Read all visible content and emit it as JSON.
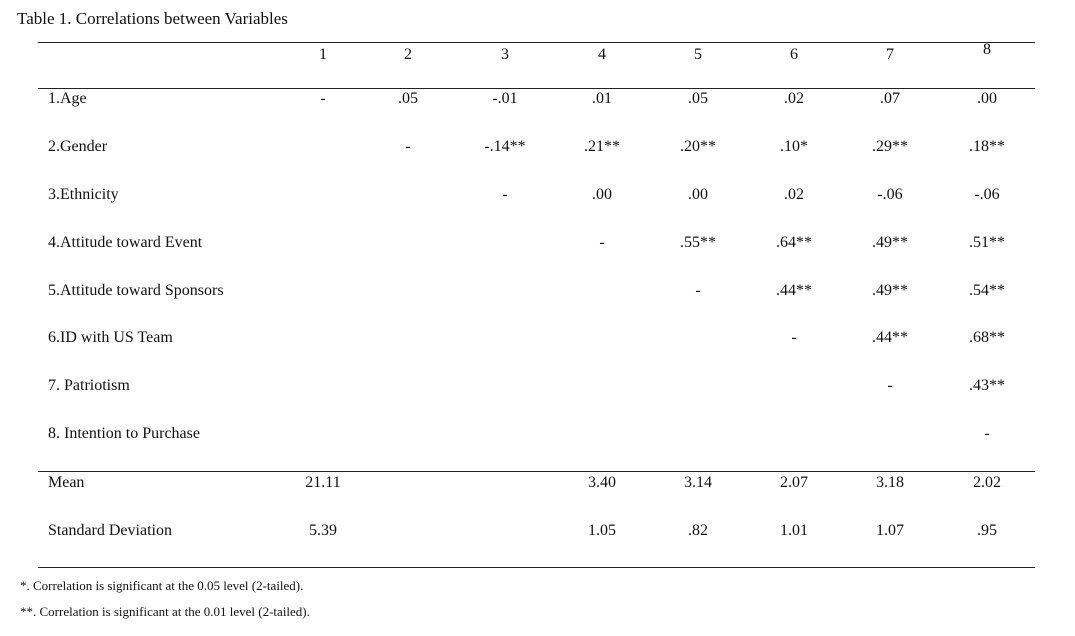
{
  "title": "Table 1. Correlations between Variables",
  "columns": [
    "1",
    "2",
    "3",
    "4",
    "5",
    "6",
    "7",
    "8"
  ],
  "rows": [
    {
      "label": "1.Age",
      "cells": [
        "-",
        ".05",
        "-.01",
        ".01",
        ".05",
        ".02",
        ".07",
        ".00"
      ]
    },
    {
      "label": "2.Gender",
      "cells": [
        "",
        "-",
        "-.14**",
        ".21**",
        ".20**",
        ".10*",
        ".29**",
        ".18**"
      ]
    },
    {
      "label": "3.Ethnicity",
      "cells": [
        "",
        "",
        "-",
        ".00",
        ".00",
        ".02",
        "-.06",
        "-.06"
      ]
    },
    {
      "label": "4.Attitude toward Event",
      "cells": [
        "",
        "",
        "",
        "-",
        ".55**",
        ".64**",
        ".49**",
        ".51**"
      ]
    },
    {
      "label": "5.Attitude toward Sponsors",
      "cells": [
        "",
        "",
        "",
        "",
        "-",
        ".44**",
        ".49**",
        ".54**"
      ]
    },
    {
      "label": "6.ID with US Team",
      "cells": [
        "",
        "",
        "",
        "",
        "",
        "-",
        ".44**",
        ".68**"
      ]
    },
    {
      "label": "7. Patriotism",
      "cells": [
        "",
        "",
        "",
        "",
        "",
        "",
        "-",
        ".43**"
      ]
    },
    {
      "label": "8. Intention to Purchase",
      "cells": [
        "",
        "",
        "",
        "",
        "",
        "",
        "",
        "-"
      ]
    }
  ],
  "summary": [
    {
      "label": "Mean",
      "cells": [
        "21.11",
        "",
        "",
        "3.40",
        "3.14",
        "2.07",
        "3.18",
        "2.02"
      ]
    },
    {
      "label": "Standard Deviation",
      "cells": [
        "5.39",
        "",
        "",
        "1.05",
        ".82",
        "1.01",
        "1.07",
        ".95"
      ]
    }
  ],
  "notes": [
    "*. Correlation is significant at the 0.05 level (2-tailed).",
    "**. Correlation is significant at the 0.01 level (2-tailed)."
  ]
}
